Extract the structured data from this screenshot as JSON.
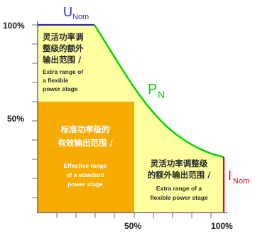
{
  "colors": {
    "stage_background": "#ffffff",
    "standard_region": "#f5ab00",
    "flexible_region": "#ffffa0",
    "power_curve": "#00d400",
    "voltage_line": "#2a2ab8",
    "current_line": "#e8001c",
    "axis": "#6f6f6f",
    "tick_label": "#1a1a1a",
    "region_text": "#2a2a2a",
    "standard_text": "#ffffff"
  },
  "axes": {
    "y_top_label": "100%",
    "y_mid_label": "50%",
    "x_mid_label": "50%",
    "x_right_label": "100%"
  },
  "curve_labels": {
    "voltage_main": "U",
    "voltage_sub": "Nom",
    "power_main": "P",
    "power_sub": "N",
    "current_main": "I",
    "current_sub": "Nom"
  },
  "regions": {
    "flexible_top": {
      "cn_lines": [
        "灵活功率调",
        "整级的额外",
        "输出范围 /"
      ],
      "en_lines": [
        "Extra range of",
        "a flexible",
        "power stage"
      ]
    },
    "standard": {
      "cn_lines": [
        "标准功率级的",
        "有效输出范围 /"
      ],
      "en_lines": [
        "Effective range",
        "of a standard",
        "power stage"
      ]
    },
    "flexible_right": {
      "cn_lines": [
        "灵活功率调整级",
        "的额外输出范围 /"
      ],
      "en_lines": [
        "Extra range of a",
        "flexible power stage"
      ]
    }
  }
}
